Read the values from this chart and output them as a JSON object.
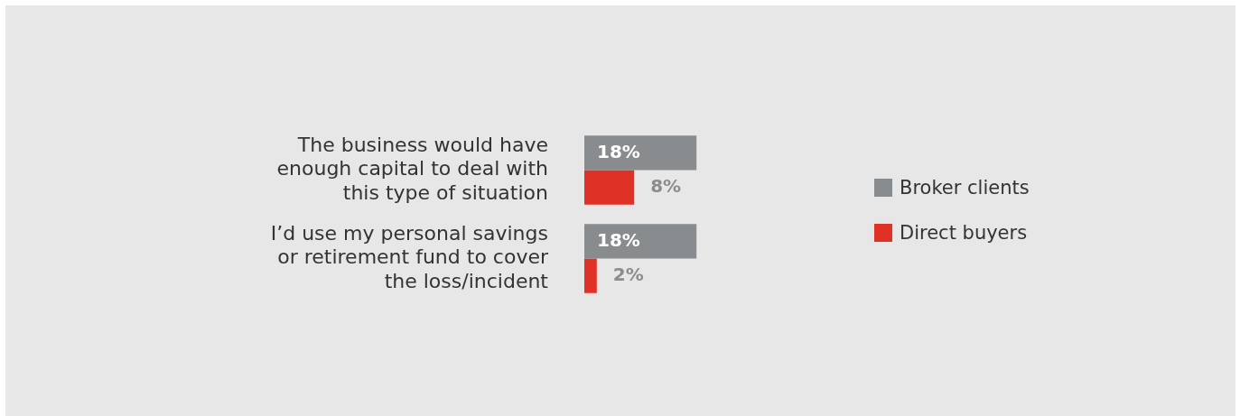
{
  "chart_data": {
    "type": "bar",
    "orientation": "horizontal",
    "categories": [
      "The business would have enough capital to deal with this type of situation",
      "I’d use my personal savings or retirement fund to cover the loss/incident"
    ],
    "series": [
      {
        "name": "Broker clients",
        "color": "#898c8e",
        "values": [
          18,
          18
        ],
        "value_labels": [
          "18%",
          "18%"
        ]
      },
      {
        "name": "Direct buyers",
        "color": "#e03127",
        "values": [
          8,
          2
        ],
        "value_labels": [
          "8%",
          "2%"
        ]
      }
    ],
    "legend": "right",
    "grid": false,
    "tick_labels": "y"
  }
}
